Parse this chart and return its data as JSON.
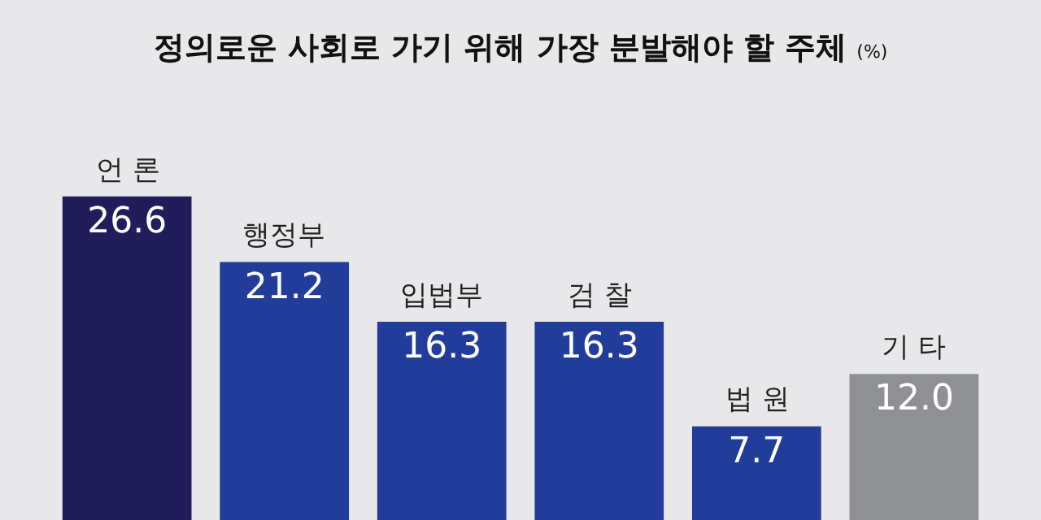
{
  "chart_data": {
    "type": "bar",
    "title": "정의로운 사회로 가기 위해 가장 분발해야 할 주체",
    "subtitle": "(%)",
    "categories": [
      "언 론",
      "행정부",
      "입법부",
      "검 찰",
      "법 원",
      "기 타"
    ],
    "values": [
      26.6,
      21.2,
      16.3,
      16.3,
      7.7,
      12.0
    ],
    "colors": [
      "#211d5a",
      "#213d99",
      "#213d99",
      "#213d99",
      "#213d99",
      "#8f9094"
    ],
    "value_labels": [
      "26.6",
      "21.2",
      "16.3",
      "16.3",
      "7.7",
      "12.0"
    ],
    "tick_labels": false,
    "grid": false,
    "legend": false
  }
}
